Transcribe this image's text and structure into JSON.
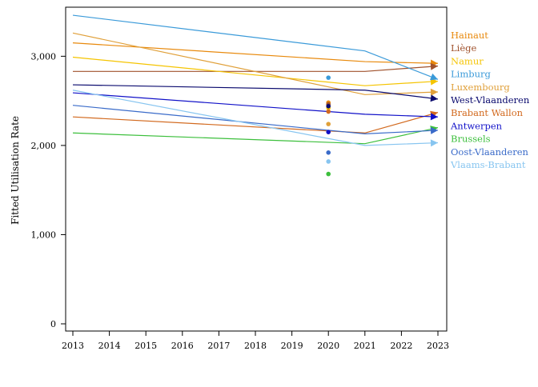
{
  "chart_data": {
    "type": "line",
    "title": "",
    "xlabel": "",
    "ylabel": "Fitted Utilisation Rate",
    "xlim": [
      2013,
      2023
    ],
    "ylim": [
      0,
      3550
    ],
    "x_ticks": [
      "2013",
      "2014",
      "2015",
      "2016",
      "2017",
      "2018",
      "2019",
      "2020",
      "2021",
      "2022",
      "2023"
    ],
    "y_ticks": [
      {
        "value": 0,
        "label": "0"
      },
      {
        "value": 1000,
        "label": "1,000"
      },
      {
        "value": 2000,
        "label": "2,000"
      },
      {
        "value": 3000,
        "label": "3,000"
      }
    ],
    "grid": false,
    "legend_position": "right",
    "series": [
      {
        "name": "Hainaut",
        "color": "#e8890c",
        "line": [
          [
            2013,
            3150
          ],
          [
            2021,
            2940
          ],
          [
            2023,
            2920
          ]
        ],
        "point": 2480
      },
      {
        "name": "Liège",
        "color": "#a0522d",
        "line": [
          [
            2013,
            2830
          ],
          [
            2021,
            2830
          ],
          [
            2023,
            2890
          ]
        ],
        "point": 2460
      },
      {
        "name": "Namur",
        "color": "#f5c400",
        "line": [
          [
            2013,
            2990
          ],
          [
            2021,
            2670
          ],
          [
            2023,
            2720
          ]
        ],
        "point": 2420
      },
      {
        "name": "Limburg",
        "color": "#3a9ad9",
        "line": [
          [
            2013,
            3460
          ],
          [
            2021,
            3060
          ],
          [
            2023,
            2740
          ]
        ],
        "point": 2760
      },
      {
        "name": "Luxembourg",
        "color": "#e0a03a",
        "line": [
          [
            2013,
            3260
          ],
          [
            2021,
            2570
          ],
          [
            2023,
            2600
          ]
        ],
        "point": 2240
      },
      {
        "name": "West-Vlaanderen",
        "color": "#0a0a6e",
        "line": [
          [
            2013,
            2680
          ],
          [
            2021,
            2620
          ],
          [
            2023,
            2520
          ]
        ],
        "point": 2440
      },
      {
        "name": "Brabant Wallon",
        "color": "#d2691e",
        "line": [
          [
            2013,
            2320
          ],
          [
            2021,
            2140
          ],
          [
            2023,
            2370
          ]
        ],
        "point": 2380
      },
      {
        "name": "Antwerpen",
        "color": "#1010c8",
        "line": [
          [
            2013,
            2590
          ],
          [
            2021,
            2350
          ],
          [
            2023,
            2320
          ]
        ],
        "point": 2150
      },
      {
        "name": "Brussels",
        "color": "#3cbf3c",
        "line": [
          [
            2013,
            2140
          ],
          [
            2021,
            2020
          ],
          [
            2023,
            2200
          ]
        ],
        "point": 1680
      },
      {
        "name": "Oost-Vlaanderen",
        "color": "#3a6bc9",
        "line": [
          [
            2013,
            2450
          ],
          [
            2021,
            2130
          ],
          [
            2023,
            2170
          ]
        ],
        "point": 1920
      },
      {
        "name": "Vlaams-Brabant",
        "color": "#87c5f0",
        "line": [
          [
            2013,
            2620
          ],
          [
            2021,
            2000
          ],
          [
            2023,
            2030
          ]
        ],
        "point": 1820
      }
    ],
    "point_x": 2020
  }
}
